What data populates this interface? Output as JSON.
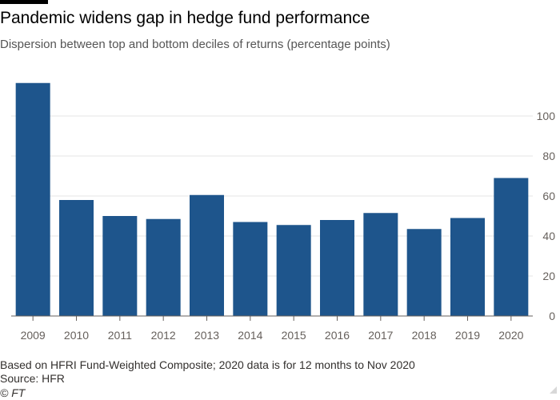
{
  "header": {
    "title": "Pandemic widens gap in hedge fund performance",
    "subtitle": "Dispersion between top and bottom deciles of returns (percentage points)"
  },
  "footer": {
    "note": "Based on HFRI Fund-Weighted Composite; 2020 data is for 12 months to Nov 2020",
    "source": "Source: HFR",
    "credit": "© FT"
  },
  "chart_data": {
    "type": "bar",
    "title": "Pandemic widens gap in hedge fund performance",
    "subtitle": "Dispersion between top and bottom deciles of returns (percentage points)",
    "categories": [
      "2009",
      "2010",
      "2011",
      "2012",
      "2013",
      "2014",
      "2015",
      "2016",
      "2017",
      "2018",
      "2019",
      "2020"
    ],
    "values": [
      116.5,
      58,
      50,
      48.5,
      60.5,
      47,
      45.5,
      48,
      51.5,
      43.5,
      49,
      69
    ],
    "ylim": [
      0,
      116.5
    ],
    "yticks": [
      0,
      20,
      40,
      60,
      80,
      100
    ],
    "y_axis_side": "right",
    "grid": true,
    "bar_color": "#1e558c",
    "gridline_color": "#e6e6e6",
    "baseline_color": "#66605c"
  }
}
